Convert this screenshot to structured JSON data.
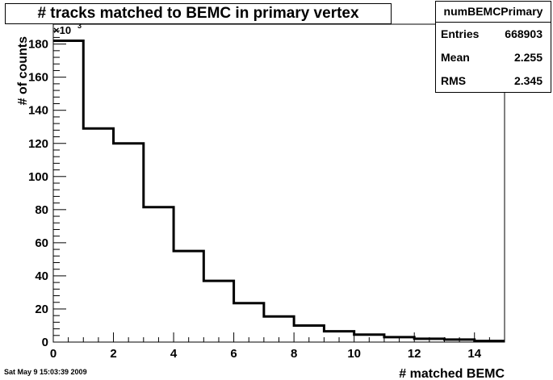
{
  "window": {
    "title": "# tracks matched to BEMC  in primary vertex",
    "timestamp": "Sat May  9 15:03:39 2009"
  },
  "stats": {
    "name": "numBEMCPrimary",
    "rows": [
      {
        "label": "Entries",
        "value": "668903"
      },
      {
        "label": "Mean",
        "value": "2.255"
      },
      {
        "label": "RMS",
        "value": "2.345"
      }
    ]
  },
  "chart_data": {
    "type": "bar",
    "subtype": "step-histogram",
    "xlabel": "# matched BEMC",
    "ylabel": "# of counts",
    "y_multiplier_label": "×10",
    "y_multiplier_exponent": "3",
    "xlim": [
      0,
      15
    ],
    "ylim": [
      0,
      192
    ],
    "x_ticks": [
      0,
      2,
      4,
      6,
      8,
      10,
      12,
      14
    ],
    "y_ticks": [
      0,
      20,
      40,
      60,
      80,
      100,
      120,
      140,
      160,
      180
    ],
    "bins": [
      0,
      1,
      2,
      3,
      4,
      5,
      6,
      7,
      8,
      9,
      10,
      11,
      12,
      13,
      14
    ],
    "values": [
      182,
      129,
      120,
      81.5,
      55,
      37,
      23.5,
      15.5,
      10,
      6.5,
      4.5,
      3,
      2,
      1.5,
      0.7
    ],
    "line_color": "#000000",
    "grid": false
  }
}
